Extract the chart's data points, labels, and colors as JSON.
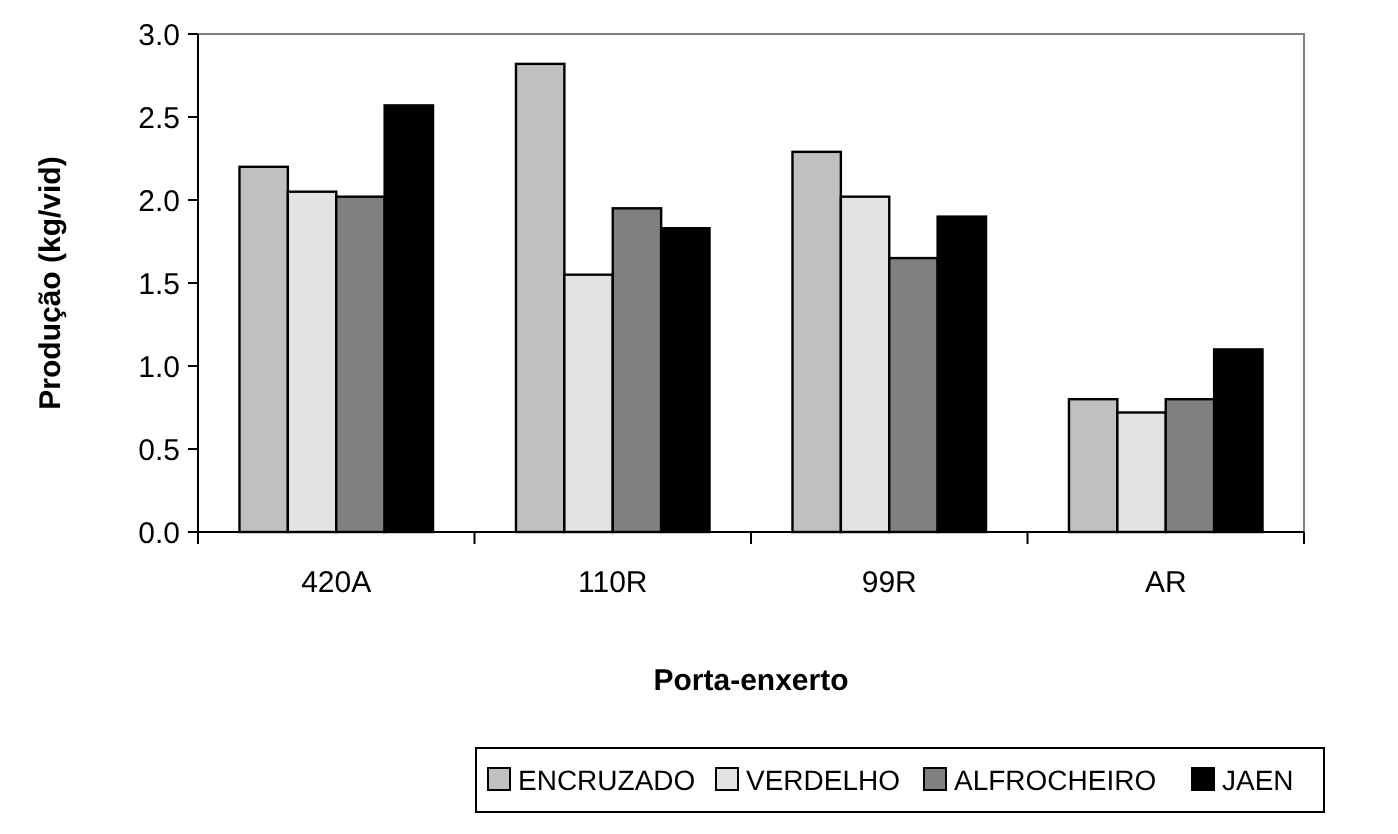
{
  "chart_data": {
    "type": "bar",
    "xlabel": "Porta-enxerto",
    "ylabel": "Produção (kg/vid)",
    "categories": [
      "420A",
      "110R",
      "99R",
      "AR"
    ],
    "series": [
      {
        "name": "ENCRUZADO",
        "color": "#c0c0c0",
        "values": [
          2.2,
          2.82,
          2.29,
          0.8
        ]
      },
      {
        "name": "VERDELHO",
        "color": "#e3e3e3",
        "values": [
          2.05,
          1.55,
          2.02,
          0.72
        ]
      },
      {
        "name": "ALFROCHEIRO",
        "color": "#808080",
        "values": [
          2.02,
          1.95,
          1.65,
          0.8
        ]
      },
      {
        "name": "JAEN",
        "color": "#000000",
        "values": [
          2.57,
          1.83,
          1.9,
          1.1
        ]
      }
    ],
    "ylim": [
      0,
      3
    ],
    "yticks": [
      {
        "value": 0,
        "label": "0.0"
      },
      {
        "value": 0.5,
        "label": "0.5"
      },
      {
        "value": 1,
        "label": "1.0"
      },
      {
        "value": 1.5,
        "label": "1.5"
      },
      {
        "value": 2,
        "label": "2.0"
      },
      {
        "value": 2.5,
        "label": "2.5"
      },
      {
        "value": 3,
        "label": "3.0"
      }
    ],
    "grid": false,
    "legend": "bottom"
  }
}
